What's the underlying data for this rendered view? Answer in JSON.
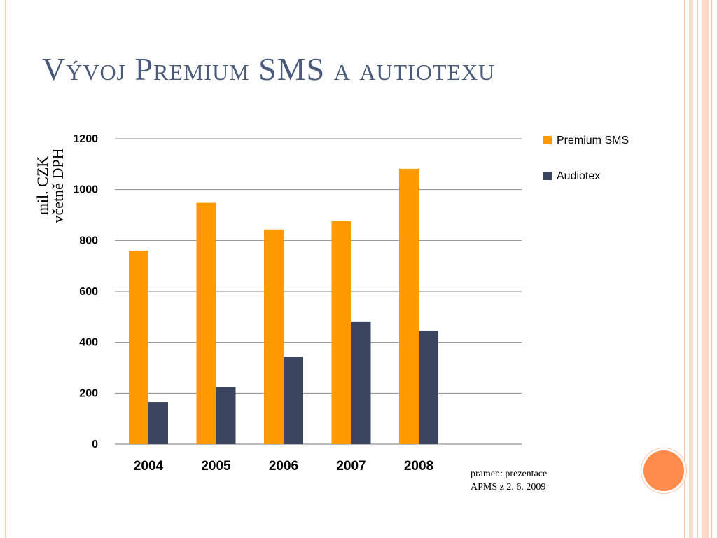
{
  "slide": {
    "title": "Vývoj Premium SMS a autiotexu",
    "ylabel_line1": "mil. CZK",
    "ylabel_line2": "včetně DPH",
    "source_line1": "pramen: prezentace",
    "source_line2": "APMS z 2. 6. 2009",
    "accent_color": "#ff8c4d",
    "frame_color": "#f3c7b1"
  },
  "chart_data": {
    "type": "bar",
    "title": "",
    "xlabel": "",
    "ylabel": "mil. CZK včetně DPH",
    "categories": [
      "2004",
      "2005",
      "2006",
      "2007",
      "2008"
    ],
    "series": [
      {
        "name": "Premium SMS",
        "values": [
          760,
          948,
          843,
          876,
          1082
        ],
        "color": "#ff9900"
      },
      {
        "name": "Audiotex",
        "values": [
          165,
          225,
          343,
          482,
          446
        ],
        "color": "#3c4560"
      }
    ],
    "ylim": [
      0,
      1200
    ],
    "yticks": [
      0,
      200,
      400,
      600,
      800,
      1000,
      1200
    ],
    "grid": true,
    "legend_position": "right"
  }
}
